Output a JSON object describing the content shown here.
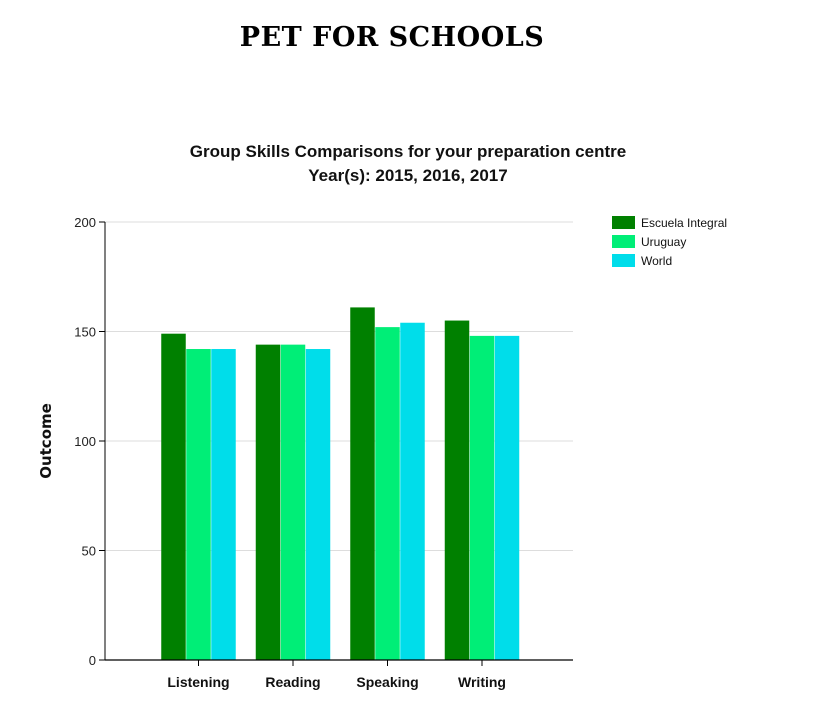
{
  "page": {
    "title": "PET FOR SCHOOLS"
  },
  "chart_data": {
    "type": "bar",
    "title": "Group Skills Comparisons for your preparation centre",
    "subtitle": "Year(s): 2015, 2016, 2017",
    "xlabel": "",
    "ylabel": "Outcome",
    "ylim": [
      0,
      200
    ],
    "yticks": [
      0,
      50,
      100,
      150,
      200
    ],
    "grid": true,
    "legend_position": "top-right",
    "categories": [
      "Listening",
      "Reading",
      "Speaking",
      "Writing"
    ],
    "series": [
      {
        "name": "Escuela Integral",
        "color": "#008000",
        "values": [
          149,
          144,
          161,
          155
        ]
      },
      {
        "name": "Uruguay",
        "color": "#00ee77",
        "values": [
          142,
          144,
          152,
          148
        ]
      },
      {
        "name": "World",
        "color": "#00ddea",
        "values": [
          142,
          142,
          154,
          148
        ]
      }
    ]
  }
}
